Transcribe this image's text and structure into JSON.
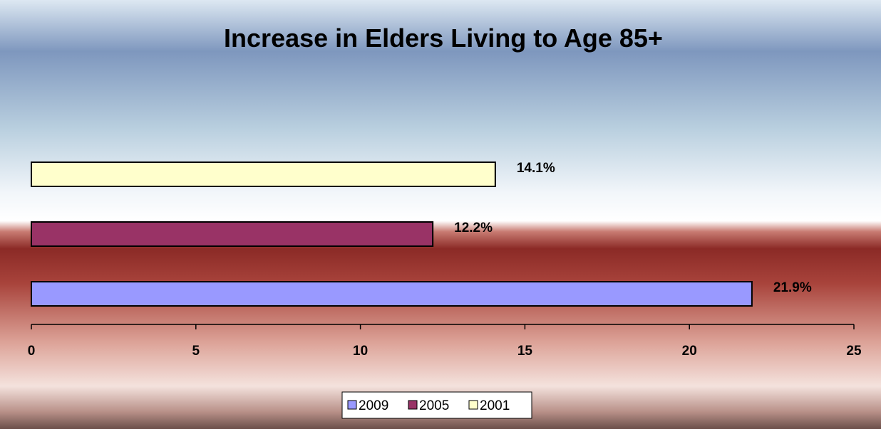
{
  "chart_data": {
    "type": "bar",
    "orientation": "horizontal",
    "title": "Increase in Elders Living to Age 85+",
    "xlabel": "",
    "ylabel": "",
    "xlim": [
      0,
      25
    ],
    "x_ticks": [
      0,
      5,
      10,
      15,
      20,
      25
    ],
    "grid": false,
    "legend_position": "bottom",
    "series": [
      {
        "name": "2009",
        "value": 21.9,
        "label": "21.9%",
        "color": "#9999FF"
      },
      {
        "name": "2005",
        "value": 12.2,
        "label": "12.2%",
        "color": "#993366"
      },
      {
        "name": "2001",
        "value": 14.1,
        "label": "14.1%",
        "color": "#FFFFCC"
      }
    ]
  },
  "colors": {
    "background_top": "#7E97BE",
    "background_mid": "#FFFFFF",
    "background_band": "#8B2A26",
    "background_bottom": "#F4E2DD"
  }
}
